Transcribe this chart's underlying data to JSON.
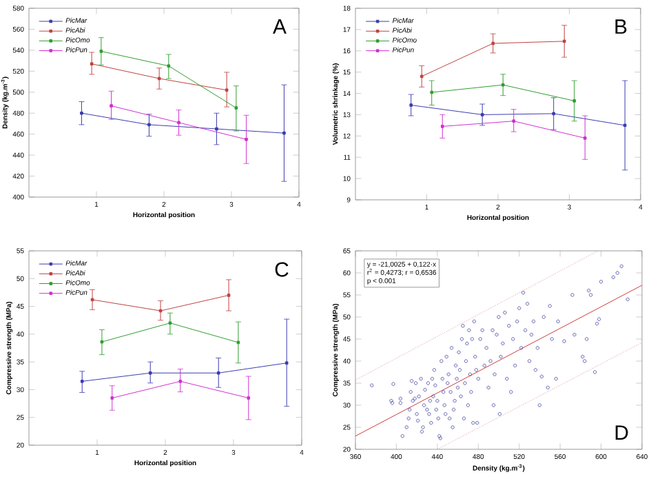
{
  "chart_data": [
    {
      "type": "line",
      "xlabel": "Horizontal position",
      "ylabel": "Density (kg.m$^{-3}$)",
      "xlim": [
        0,
        4
      ],
      "ylim": [
        400,
        580
      ],
      "xticks": [
        1,
        2,
        3,
        4
      ],
      "yticks": [
        400,
        420,
        440,
        460,
        480,
        500,
        520,
        540,
        560,
        580
      ],
      "legend": "top left",
      "marker": "square",
      "annotations": [
        "A"
      ],
      "series": [
        {
          "name": "PicMar",
          "color": "#3b3bb0",
          "x": [
            0.78,
            1.78,
            2.78,
            3.78
          ],
          "values": [
            480,
            469,
            465,
            461
          ],
          "errors": [
            [
              469,
              491
            ],
            [
              458,
              479
            ],
            [
              450,
              480
            ],
            [
              415,
              507
            ]
          ]
        },
        {
          "name": "PicAbi",
          "color": "#c04040",
          "x": [
            0.93,
            1.93,
            2.93
          ],
          "values": [
            527,
            513,
            502
          ],
          "errors": [
            [
              517,
              538
            ],
            [
              503,
              523
            ],
            [
              486,
              519
            ]
          ]
        },
        {
          "name": "PicOmo",
          "color": "#2e9e2e",
          "x": [
            1.07,
            2.07,
            3.07
          ],
          "values": [
            539,
            525,
            485
          ],
          "errors": [
            [
              526,
              552
            ],
            [
              513,
              536
            ],
            [
              463,
              506
            ]
          ]
        },
        {
          "name": "PicPun",
          "color": "#d030d0",
          "x": [
            1.22,
            2.22,
            3.22
          ],
          "values": [
            487,
            471,
            455
          ],
          "errors": [
            [
              474,
              501
            ],
            [
              459,
              483
            ],
            [
              432,
              478
            ]
          ]
        }
      ]
    },
    {
      "type": "line",
      "xlabel": "Horizontal position",
      "ylabel": "Volumetric shrinkage (%)",
      "xlim": [
        0,
        4
      ],
      "ylim": [
        9,
        18
      ],
      "xticks": [
        1,
        2,
        3,
        4
      ],
      "yticks": [
        9,
        10,
        11,
        12,
        13,
        14,
        15,
        16,
        17,
        18
      ],
      "legend": "top left",
      "marker": "square",
      "annotations": [
        "B"
      ],
      "series": [
        {
          "name": "PicMar",
          "color": "#3b3bb0",
          "x": [
            0.78,
            1.78,
            2.78,
            3.78
          ],
          "values": [
            13.45,
            13.0,
            13.05,
            12.5
          ],
          "errors": [
            [
              12.95,
              13.95
            ],
            [
              12.5,
              13.5
            ],
            [
              12.3,
              13.8
            ],
            [
              10.4,
              14.6
            ]
          ]
        },
        {
          "name": "PicAbi",
          "color": "#c04040",
          "x": [
            0.93,
            1.93,
            2.93
          ],
          "values": [
            14.8,
            16.35,
            16.45
          ],
          "errors": [
            [
              14.3,
              15.3
            ],
            [
              15.9,
              16.8
            ],
            [
              15.7,
              17.2
            ]
          ]
        },
        {
          "name": "PicOmo",
          "color": "#2e9e2e",
          "x": [
            1.07,
            2.07,
            3.07
          ],
          "values": [
            14.05,
            14.4,
            13.65
          ],
          "errors": [
            [
              13.45,
              14.6
            ],
            [
              13.9,
              14.9
            ],
            [
              12.7,
              14.6
            ]
          ]
        },
        {
          "name": "PicPun",
          "color": "#d030d0",
          "x": [
            1.22,
            2.22,
            3.22
          ],
          "values": [
            12.45,
            12.7,
            11.9
          ],
          "errors": [
            [
              11.9,
              13.0
            ],
            [
              12.2,
              13.25
            ],
            [
              10.9,
              12.95
            ]
          ]
        }
      ]
    },
    {
      "type": "line",
      "xlabel": "Horizontal position",
      "ylabel": "Compressive strength (MPa)",
      "xlim": [
        0,
        4
      ],
      "ylim": [
        20,
        55
      ],
      "xticks": [
        1,
        2,
        3,
        4
      ],
      "yticks": [
        20,
        25,
        30,
        35,
        40,
        45,
        50,
        55
      ],
      "legend": "top left",
      "marker": "square",
      "annotations": [
        "C"
      ],
      "series": [
        {
          "name": "PicMar",
          "color": "#3b3bb0",
          "x": [
            0.78,
            1.78,
            2.78,
            3.78
          ],
          "values": [
            31.5,
            33.0,
            33.0,
            34.8
          ],
          "errors": [
            [
              29.5,
              33.3
            ],
            [
              31.2,
              35.0
            ],
            [
              30.4,
              35.7
            ],
            [
              27.0,
              42.7
            ]
          ]
        },
        {
          "name": "PicAbi",
          "color": "#c04040",
          "x": [
            0.93,
            1.93,
            2.93
          ],
          "values": [
            46.2,
            44.2,
            47.0
          ],
          "errors": [
            [
              44.4,
              48.0
            ],
            [
              42.5,
              46.0
            ],
            [
              44.2,
              49.8
            ]
          ]
        },
        {
          "name": "PicOmo",
          "color": "#2e9e2e",
          "x": [
            1.07,
            2.07,
            3.07
          ],
          "values": [
            38.6,
            42.0,
            38.5
          ],
          "errors": [
            [
              36.3,
              40.8
            ],
            [
              40.0,
              43.8
            ],
            [
              34.8,
              42.2
            ]
          ]
        },
        {
          "name": "PicPun",
          "color": "#d030d0",
          "x": [
            1.22,
            2.22,
            3.22
          ],
          "values": [
            28.5,
            31.5,
            28.5
          ],
          "errors": [
            [
              26.3,
              30.7
            ],
            [
              29.6,
              33.7
            ],
            [
              24.6,
              32.4
            ]
          ]
        }
      ]
    },
    {
      "type": "scatter",
      "xlabel": "Density (kg.m$^{-3}$)",
      "ylabel": "Compressive strength (MPa)",
      "xlim": [
        360,
        640
      ],
      "ylim": [
        20,
        65
      ],
      "xticks": [
        360,
        400,
        440,
        480,
        520,
        560,
        600,
        640
      ],
      "yticks": [
        20,
        25,
        30,
        35,
        40,
        45,
        50,
        55,
        60,
        65
      ],
      "annotations": [
        "y = -21,0025 + 0,122·x",
        "r$^{2}$ = 0,4273; r = 0,6536",
        "p < 0.001",
        "D"
      ],
      "series": [
        {
          "type": "scatter",
          "color": "#3c3ca0",
          "marker": "circle",
          "x": [
            376,
            397,
            395,
            396,
            404,
            406,
            410,
            412,
            413,
            414,
            415,
            416,
            418,
            419,
            420,
            421,
            422,
            424,
            425,
            426,
            427,
            428,
            430,
            431,
            432,
            433,
            434,
            435,
            436,
            437,
            438,
            439,
            440,
            441,
            442,
            443,
            444,
            445,
            446,
            447,
            448,
            449,
            450,
            451,
            452,
            453,
            454,
            455,
            456,
            457,
            458,
            459,
            460,
            461,
            462,
            463,
            464,
            465,
            466,
            467,
            468,
            469,
            470,
            471,
            472,
            473,
            474,
            475,
            476,
            477,
            478,
            479,
            480,
            482,
            484,
            486,
            488,
            490,
            492,
            494,
            495,
            496,
            498,
            500,
            501,
            502,
            504,
            506,
            508,
            510,
            512,
            514,
            516,
            518,
            520,
            522,
            524,
            526,
            528,
            530,
            532,
            534,
            536,
            538,
            540,
            542,
            544,
            548,
            550,
            552,
            556,
            558,
            564,
            572,
            574,
            582,
            584,
            586,
            588,
            590,
            594,
            596,
            598,
            600,
            612,
            616,
            620,
            626,
            404
          ],
          "values": [
            34.5,
            34.8,
            31,
            30.5,
            31.5,
            23,
            25,
            27,
            29,
            33,
            35.5,
            31,
            31.5,
            35,
            28,
            26.5,
            32,
            36,
            24,
            25,
            30,
            33.5,
            29,
            35,
            28,
            31,
            26,
            36,
            32,
            38,
            34.5,
            29,
            31,
            27,
            23,
            22.5,
            40,
            36,
            33,
            30,
            28,
            41,
            35,
            37,
            27,
            33,
            43,
            25,
            29,
            31,
            39,
            36,
            34,
            42,
            38,
            32,
            45,
            48,
            27,
            35,
            40,
            44,
            30,
            47,
            37,
            33,
            45,
            26,
            49,
            41,
            38,
            26,
            36,
            45,
            47,
            39,
            43,
            34,
            40,
            47,
            30,
            37,
            46,
            50,
            28,
            41,
            44,
            51,
            36,
            48,
            33,
            45,
            39,
            49,
            52,
            43,
            55.5,
            47,
            53,
            40,
            46,
            49,
            38,
            43,
            30,
            36.5,
            50,
            34,
            52.5,
            45,
            36,
            49,
            44.5,
            55,
            46,
            41,
            40,
            45,
            56,
            55,
            37.5,
            48.5,
            49.5,
            58,
            59,
            60,
            61.5,
            54,
            30.5
          ]
        },
        {
          "type": "line",
          "color": "#c83c3c",
          "line_style": "solid",
          "x": [
            360,
            640
          ],
          "values": [
            23,
            57.2
          ]
        },
        {
          "type": "line",
          "color": "#d89090",
          "line_style": "dotted",
          "x": [
            360,
            597
          ],
          "values": [
            35.7,
            65
          ]
        },
        {
          "type": "line",
          "color": "#d89090",
          "line_style": "dotted",
          "x": [
            440,
            640
          ],
          "values": [
            20,
            44.2
          ]
        }
      ]
    }
  ]
}
